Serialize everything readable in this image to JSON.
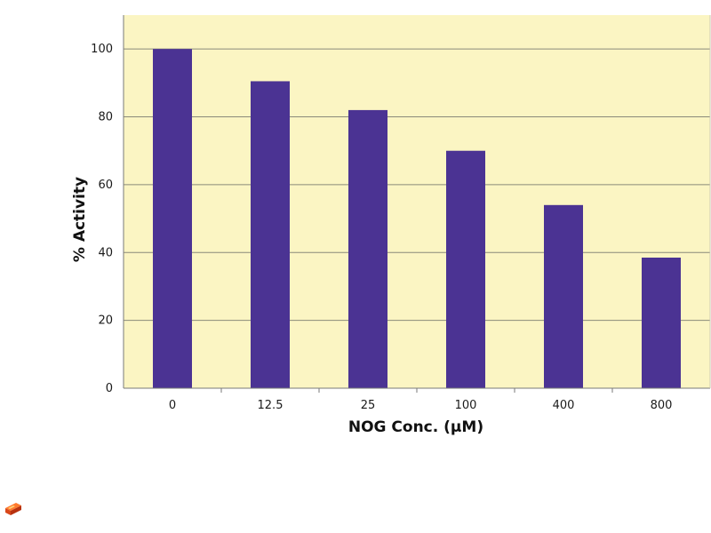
{
  "chart_data": {
    "type": "bar",
    "categories": [
      "0",
      "12.5",
      "25",
      "100",
      "400",
      "800"
    ],
    "values": [
      100,
      90.5,
      82,
      70,
      54,
      38.5
    ],
    "xlabel": "NOG Conc. (μM)",
    "ylabel": "% Activity",
    "ylim": [
      0,
      110
    ],
    "yticks": [
      0,
      20,
      40,
      60,
      80,
      100
    ],
    "grid": true,
    "legend": "none"
  },
  "colors": {
    "plot_background": "#fbf5c3",
    "bar": "#4b3393",
    "gridline": "#8a8a7a",
    "axis": "#7a7a7a"
  },
  "icons": {
    "corner_logo": "orange-cube-logo-icon"
  }
}
